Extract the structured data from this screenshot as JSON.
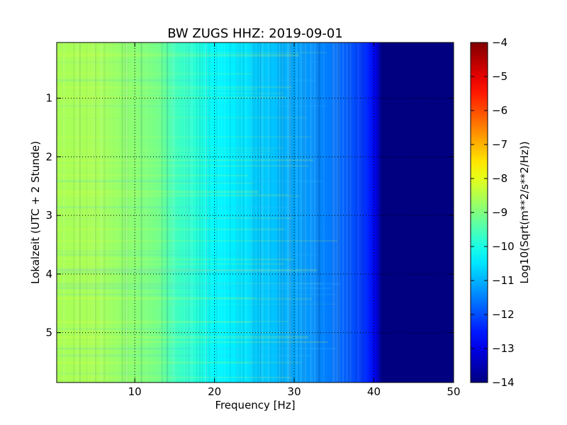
{
  "chart_data": {
    "type": "heatmap",
    "title": "BW ZUGS HHZ: 2019-09-01",
    "xlabel": "Frequency [Hz]",
    "ylabel": "Lokalzeit (UTC + 2 Stunde)",
    "xlim": [
      0.2,
      50
    ],
    "ylim": [
      5.85,
      0.05
    ],
    "x_ticks": [
      10,
      20,
      30,
      40,
      50
    ],
    "x_tick_labels": [
      "10",
      "20",
      "30",
      "40",
      "50"
    ],
    "y_ticks": [
      1,
      2,
      3,
      4,
      5
    ],
    "y_tick_labels": [
      "1",
      "2",
      "3",
      "4",
      "5"
    ],
    "grid": true,
    "colormap": "jet",
    "colorbar": {
      "label": "Log10(Sqrt(m**2/s**2/Hz))",
      "range": [
        -14,
        -4
      ],
      "ticks": [
        -4,
        -5,
        -6,
        -7,
        -8,
        -9,
        -10,
        -11,
        -12,
        -13,
        -14
      ],
      "tick_labels": [
        "−4",
        "−5",
        "−6",
        "−7",
        "−8",
        "−9",
        "−10",
        "−11",
        "−12",
        "−13",
        "−14"
      ]
    },
    "frequency_profile": {
      "frequency_hz": [
        0,
        5,
        10,
        13,
        15,
        18,
        20,
        22,
        24,
        25,
        27,
        30,
        33,
        35,
        37,
        38,
        39,
        40,
        41,
        50
      ],
      "log10_amplitude": [
        -8.6,
        -8.6,
        -8.9,
        -9.1,
        -9.6,
        -9.9,
        -10.3,
        -10.4,
        -10.5,
        -10.7,
        -10.8,
        -11.1,
        -11.4,
        -11.6,
        -11.9,
        -12.1,
        -12.3,
        -12.7,
        -14,
        -14
      ]
    }
  }
}
